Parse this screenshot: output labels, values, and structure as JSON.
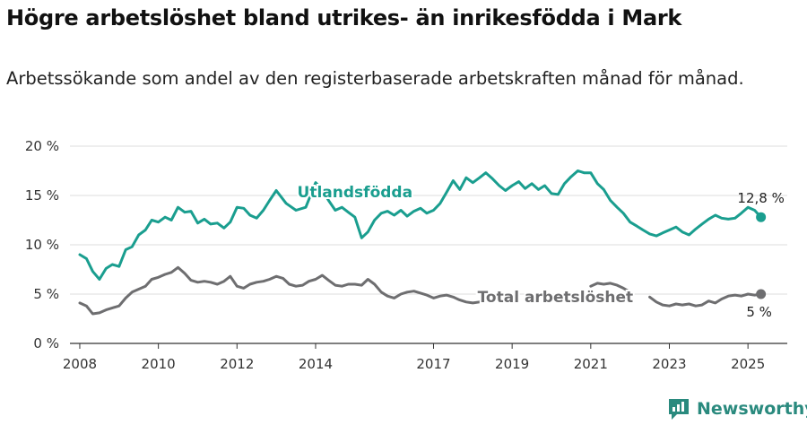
{
  "title": "Högre arbetslöshet bland utrikes- än inrikesfödda i Mark",
  "subtitle": "Arbetssökande som andel av den registerbaserade arbetskraften månad för månad.",
  "brand": {
    "name": "Newsworthy",
    "icon": "newsworthy-logo-icon"
  },
  "colors": {
    "foreign": "#1a9e8f",
    "total": "#6e6e70",
    "grid": "#dddddd",
    "axis": "#333333"
  },
  "chart_data": {
    "type": "line",
    "xlabel": "",
    "ylabel": "",
    "xlim": [
      2007.75,
      2026.0
    ],
    "ylim": [
      0,
      20
    ],
    "grid": true,
    "y_ticks": [
      0,
      5,
      10,
      15,
      20
    ],
    "y_tick_labels": [
      "0 %",
      "5 %",
      "10 %",
      "15 %",
      "20 %"
    ],
    "x_ticks": [
      2008,
      2010,
      2012,
      2014,
      2017,
      2019,
      2021,
      2023,
      2025
    ],
    "x_tick_labels": [
      "2008",
      "2010",
      "2012",
      "2014",
      "2017",
      "2019",
      "2021",
      "2023",
      "2025"
    ],
    "series": [
      {
        "name": "Utlandsfödda",
        "color": "#1a9e8f",
        "end_label": "12,8 %",
        "points": [
          [
            2008.0,
            9.0
          ],
          [
            2008.17,
            8.6
          ],
          [
            2008.33,
            7.3
          ],
          [
            2008.5,
            6.5
          ],
          [
            2008.67,
            7.6
          ],
          [
            2008.83,
            8.0
          ],
          [
            2009.0,
            7.8
          ],
          [
            2009.17,
            9.5
          ],
          [
            2009.33,
            9.8
          ],
          [
            2009.5,
            11.0
          ],
          [
            2009.67,
            11.5
          ],
          [
            2009.83,
            12.5
          ],
          [
            2010.0,
            12.3
          ],
          [
            2010.17,
            12.8
          ],
          [
            2010.33,
            12.5
          ],
          [
            2010.5,
            13.8
          ],
          [
            2010.67,
            13.3
          ],
          [
            2010.83,
            13.4
          ],
          [
            2011.0,
            12.2
          ],
          [
            2011.17,
            12.6
          ],
          [
            2011.33,
            12.1
          ],
          [
            2011.5,
            12.2
          ],
          [
            2011.67,
            11.7
          ],
          [
            2011.83,
            12.3
          ],
          [
            2012.0,
            13.8
          ],
          [
            2012.17,
            13.7
          ],
          [
            2012.33,
            13.0
          ],
          [
            2012.5,
            12.7
          ],
          [
            2012.67,
            13.5
          ],
          [
            2012.83,
            14.5
          ],
          [
            2013.0,
            15.5
          ],
          [
            2013.25,
            14.2
          ],
          [
            2013.5,
            13.5
          ],
          [
            2013.75,
            13.8
          ],
          [
            2014.0,
            16.3
          ],
          [
            2014.17,
            15.6
          ],
          [
            2014.33,
            14.5
          ],
          [
            2014.5,
            13.5
          ],
          [
            2014.67,
            13.8
          ],
          [
            2014.83,
            13.3
          ],
          [
            2015.0,
            12.8
          ],
          [
            2015.17,
            10.7
          ],
          [
            2015.33,
            11.3
          ],
          [
            2015.5,
            12.5
          ],
          [
            2015.67,
            13.2
          ],
          [
            2015.83,
            13.4
          ],
          [
            2016.0,
            13.0
          ],
          [
            2016.17,
            13.5
          ],
          [
            2016.33,
            12.9
          ],
          [
            2016.5,
            13.4
          ],
          [
            2016.67,
            13.7
          ],
          [
            2016.83,
            13.2
          ],
          [
            2017.0,
            13.5
          ],
          [
            2017.17,
            14.2
          ],
          [
            2017.33,
            15.3
          ],
          [
            2017.5,
            16.5
          ],
          [
            2017.67,
            15.6
          ],
          [
            2017.83,
            16.8
          ],
          [
            2018.0,
            16.3
          ],
          [
            2018.17,
            16.8
          ],
          [
            2018.33,
            17.3
          ],
          [
            2018.5,
            16.7
          ],
          [
            2018.67,
            16.0
          ],
          [
            2018.83,
            15.5
          ],
          [
            2019.0,
            16.0
          ],
          [
            2019.17,
            16.4
          ],
          [
            2019.33,
            15.7
          ],
          [
            2019.5,
            16.2
          ],
          [
            2019.67,
            15.6
          ],
          [
            2019.83,
            16.0
          ],
          [
            2020.0,
            15.2
          ],
          [
            2020.17,
            15.1
          ],
          [
            2020.33,
            16.2
          ],
          [
            2020.5,
            16.9
          ],
          [
            2020.67,
            17.5
          ],
          [
            2020.83,
            17.3
          ],
          [
            2021.0,
            17.3
          ],
          [
            2021.17,
            16.2
          ],
          [
            2021.33,
            15.6
          ],
          [
            2021.5,
            14.5
          ],
          [
            2021.67,
            13.8
          ],
          [
            2021.83,
            13.2
          ],
          [
            2022.0,
            12.3
          ],
          [
            2022.17,
            11.9
          ],
          [
            2022.33,
            11.5
          ],
          [
            2022.5,
            11.1
          ],
          [
            2022.67,
            10.9
          ],
          [
            2022.83,
            11.2
          ],
          [
            2023.0,
            11.5
          ],
          [
            2023.17,
            11.8
          ],
          [
            2023.33,
            11.3
          ],
          [
            2023.5,
            11.0
          ],
          [
            2023.67,
            11.6
          ],
          [
            2023.83,
            12.1
          ],
          [
            2024.0,
            12.6
          ],
          [
            2024.17,
            13.0
          ],
          [
            2024.33,
            12.7
          ],
          [
            2024.5,
            12.6
          ],
          [
            2024.67,
            12.7
          ],
          [
            2024.83,
            13.2
          ],
          [
            2025.0,
            13.8
          ],
          [
            2025.17,
            13.5
          ],
          [
            2025.33,
            12.8
          ]
        ]
      },
      {
        "name": "Total arbetslöshet",
        "color": "#6e6e70",
        "end_label": "5 %",
        "points": [
          [
            2008.0,
            4.1
          ],
          [
            2008.17,
            3.8
          ],
          [
            2008.33,
            3.0
          ],
          [
            2008.5,
            3.1
          ],
          [
            2008.67,
            3.4
          ],
          [
            2008.83,
            3.6
          ],
          [
            2009.0,
            3.8
          ],
          [
            2009.17,
            4.6
          ],
          [
            2009.33,
            5.2
          ],
          [
            2009.5,
            5.5
          ],
          [
            2009.67,
            5.8
          ],
          [
            2009.83,
            6.5
          ],
          [
            2010.0,
            6.7
          ],
          [
            2010.17,
            7.0
          ],
          [
            2010.33,
            7.2
          ],
          [
            2010.5,
            7.7
          ],
          [
            2010.67,
            7.1
          ],
          [
            2010.83,
            6.4
          ],
          [
            2011.0,
            6.2
          ],
          [
            2011.17,
            6.3
          ],
          [
            2011.33,
            6.2
          ],
          [
            2011.5,
            6.0
          ],
          [
            2011.67,
            6.3
          ],
          [
            2011.83,
            6.8
          ],
          [
            2012.0,
            5.8
          ],
          [
            2012.17,
            5.6
          ],
          [
            2012.33,
            6.0
          ],
          [
            2012.5,
            6.2
          ],
          [
            2012.67,
            6.3
          ],
          [
            2012.83,
            6.5
          ],
          [
            2013.0,
            6.8
          ],
          [
            2013.17,
            6.6
          ],
          [
            2013.33,
            6.0
          ],
          [
            2013.5,
            5.8
          ],
          [
            2013.67,
            5.9
          ],
          [
            2013.83,
            6.3
          ],
          [
            2014.0,
            6.5
          ],
          [
            2014.17,
            6.9
          ],
          [
            2014.33,
            6.4
          ],
          [
            2014.5,
            5.9
          ],
          [
            2014.67,
            5.8
          ],
          [
            2014.83,
            6.0
          ],
          [
            2015.0,
            6.0
          ],
          [
            2015.17,
            5.9
          ],
          [
            2015.33,
            6.5
          ],
          [
            2015.5,
            6.0
          ],
          [
            2015.67,
            5.2
          ],
          [
            2015.83,
            4.8
          ],
          [
            2016.0,
            4.6
          ],
          [
            2016.17,
            5.0
          ],
          [
            2016.33,
            5.2
          ],
          [
            2016.5,
            5.3
          ],
          [
            2016.67,
            5.1
          ],
          [
            2016.83,
            4.9
          ],
          [
            2017.0,
            4.6
          ],
          [
            2017.17,
            4.8
          ],
          [
            2017.33,
            4.9
          ],
          [
            2017.5,
            4.7
          ],
          [
            2017.67,
            4.4
          ],
          [
            2017.83,
            4.2
          ],
          [
            2018.0,
            4.1
          ],
          [
            2018.17,
            4.2
          ],
          [
            2018.33,
            4.5
          ],
          [
            2018.5,
            4.3
          ],
          null,
          [
            2021.0,
            5.8
          ],
          [
            2021.17,
            6.1
          ],
          [
            2021.33,
            6.0
          ],
          [
            2021.5,
            6.1
          ],
          [
            2021.67,
            5.9
          ],
          [
            2021.83,
            5.6
          ],
          [
            2022.0,
            5.2
          ],
          null,
          [
            2022.5,
            4.7
          ],
          [
            2022.67,
            4.2
          ],
          [
            2022.83,
            3.9
          ],
          [
            2023.0,
            3.8
          ],
          [
            2023.17,
            4.0
          ],
          [
            2023.33,
            3.9
          ],
          [
            2023.5,
            4.0
          ],
          [
            2023.67,
            3.8
          ],
          [
            2023.83,
            3.9
          ],
          [
            2024.0,
            4.3
          ],
          [
            2024.17,
            4.1
          ],
          [
            2024.33,
            4.5
          ],
          [
            2024.5,
            4.8
          ],
          [
            2024.67,
            4.9
          ],
          [
            2024.83,
            4.8
          ],
          [
            2025.0,
            5.0
          ],
          [
            2025.17,
            4.9
          ],
          [
            2025.33,
            5.0
          ]
        ]
      }
    ]
  }
}
